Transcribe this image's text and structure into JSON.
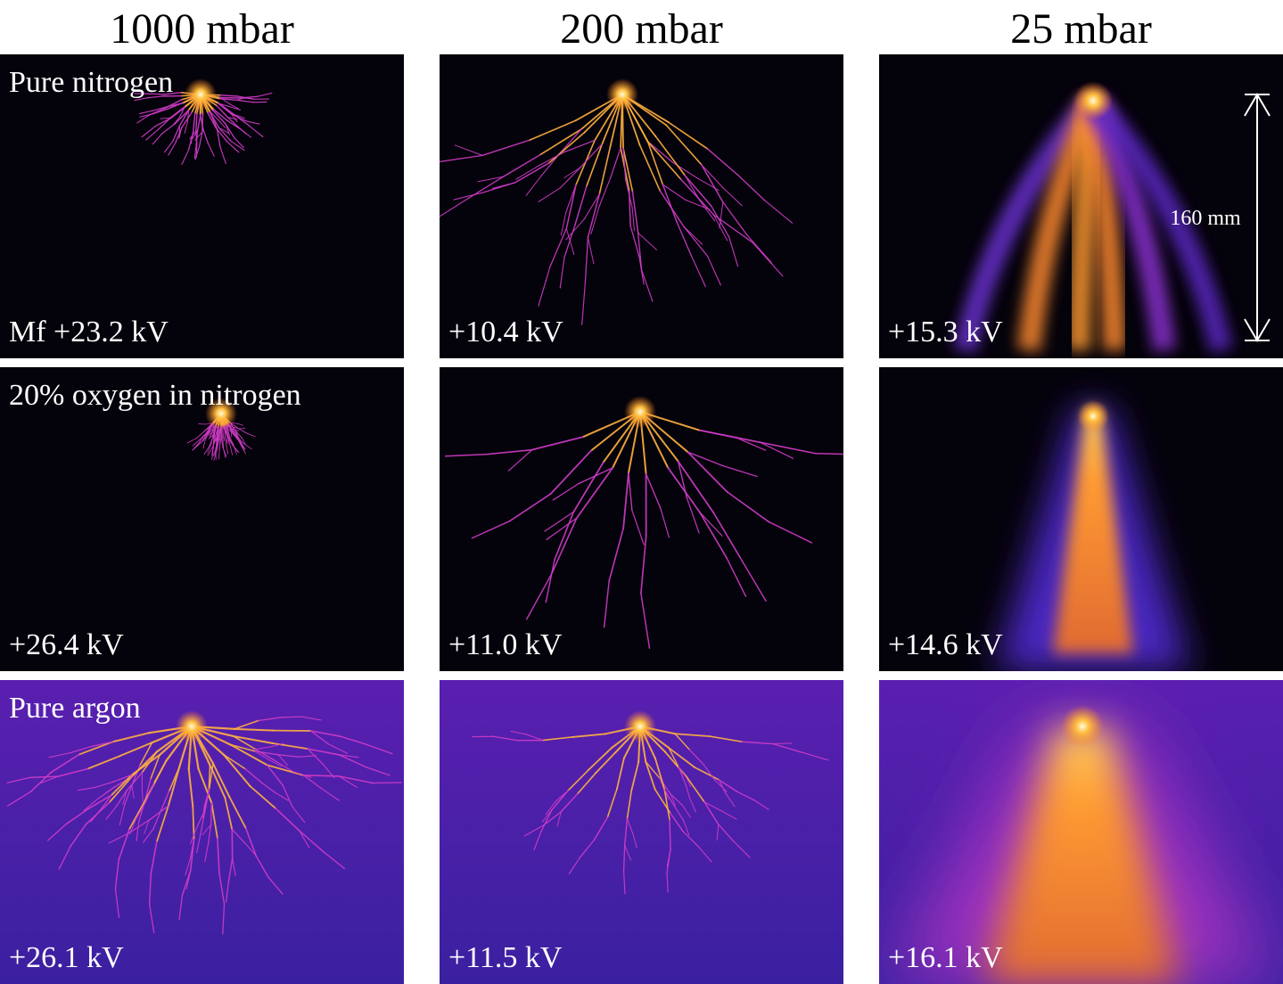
{
  "column_headers": [
    "1000 mbar",
    "200 mbar",
    "25 mbar"
  ],
  "row_labels": [
    "Pure nitrogen",
    "20% oxygen in nitrogen",
    "Pure argon"
  ],
  "panels": [
    [
      "Mf +23.2 kV",
      "+10.4 kV",
      "+15.3 kV"
    ],
    [
      "+26.4 kV",
      "+11.0 kV",
      "+14.6 kV"
    ],
    [
      "+26.1 kV",
      "+11.5 kV",
      "+16.1 kV"
    ]
  ],
  "scale_bar": "160 mm"
}
